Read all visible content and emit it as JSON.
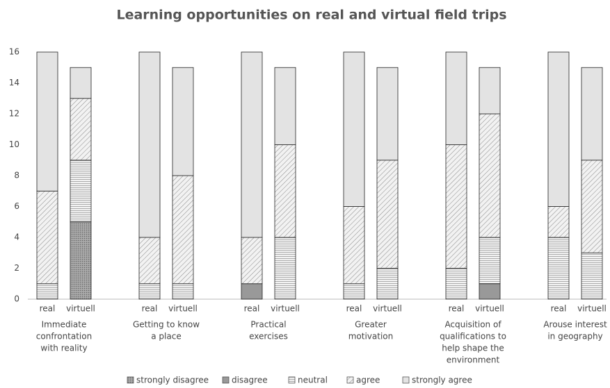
{
  "chart_data": {
    "type": "stacked-bar",
    "title": "Learning opportunities on real and virtual field trips",
    "categories": [
      "real",
      "virtuell",
      "real",
      "virtuell",
      "real",
      "virtuell",
      "real",
      "virtuell",
      "real",
      "virtuell",
      "real",
      "virtuell"
    ],
    "groups": [
      [
        "Immediate",
        "confrontation",
        "with reality"
      ],
      [
        "Getting to know",
        "a place"
      ],
      [
        "Practical",
        "exercises"
      ],
      [
        "Greater",
        "motivation"
      ],
      [
        "Acquisition of",
        "qualifications to",
        "help shape the",
        "environment"
      ],
      [
        "Arouse interest",
        "in geography"
      ]
    ],
    "series": [
      {
        "name": "strongly disagree",
        "color": "#888888",
        "pattern": "dots",
        "values": [
          0,
          5,
          0,
          0,
          0,
          0,
          0,
          0,
          0,
          0,
          0,
          0
        ]
      },
      {
        "name": "disagree",
        "color": "#999999",
        "pattern": "solid",
        "values": [
          0,
          0,
          0,
          0,
          1,
          0,
          0,
          0,
          0,
          1,
          0,
          0
        ]
      },
      {
        "name": "neutral",
        "color": "#eeeeee",
        "pattern": "horizontal",
        "values": [
          1,
          4,
          1,
          1,
          0,
          4,
          1,
          2,
          2,
          3,
          4,
          3
        ]
      },
      {
        "name": "agree",
        "color": "#eeeeee",
        "pattern": "diagonal",
        "values": [
          6,
          4,
          3,
          7,
          3,
          6,
          5,
          7,
          8,
          8,
          2,
          6
        ]
      },
      {
        "name": "strongly agree",
        "color": "#e3e3e3",
        "pattern": "solid",
        "values": [
          9,
          2,
          12,
          7,
          12,
          5,
          10,
          6,
          6,
          3,
          10,
          6
        ]
      }
    ],
    "ylim": [
      0,
      16
    ],
    "yticks": [
      0,
      2,
      4,
      6,
      8,
      10,
      12,
      14,
      16
    ],
    "grid": false,
    "legend": "bottom"
  }
}
